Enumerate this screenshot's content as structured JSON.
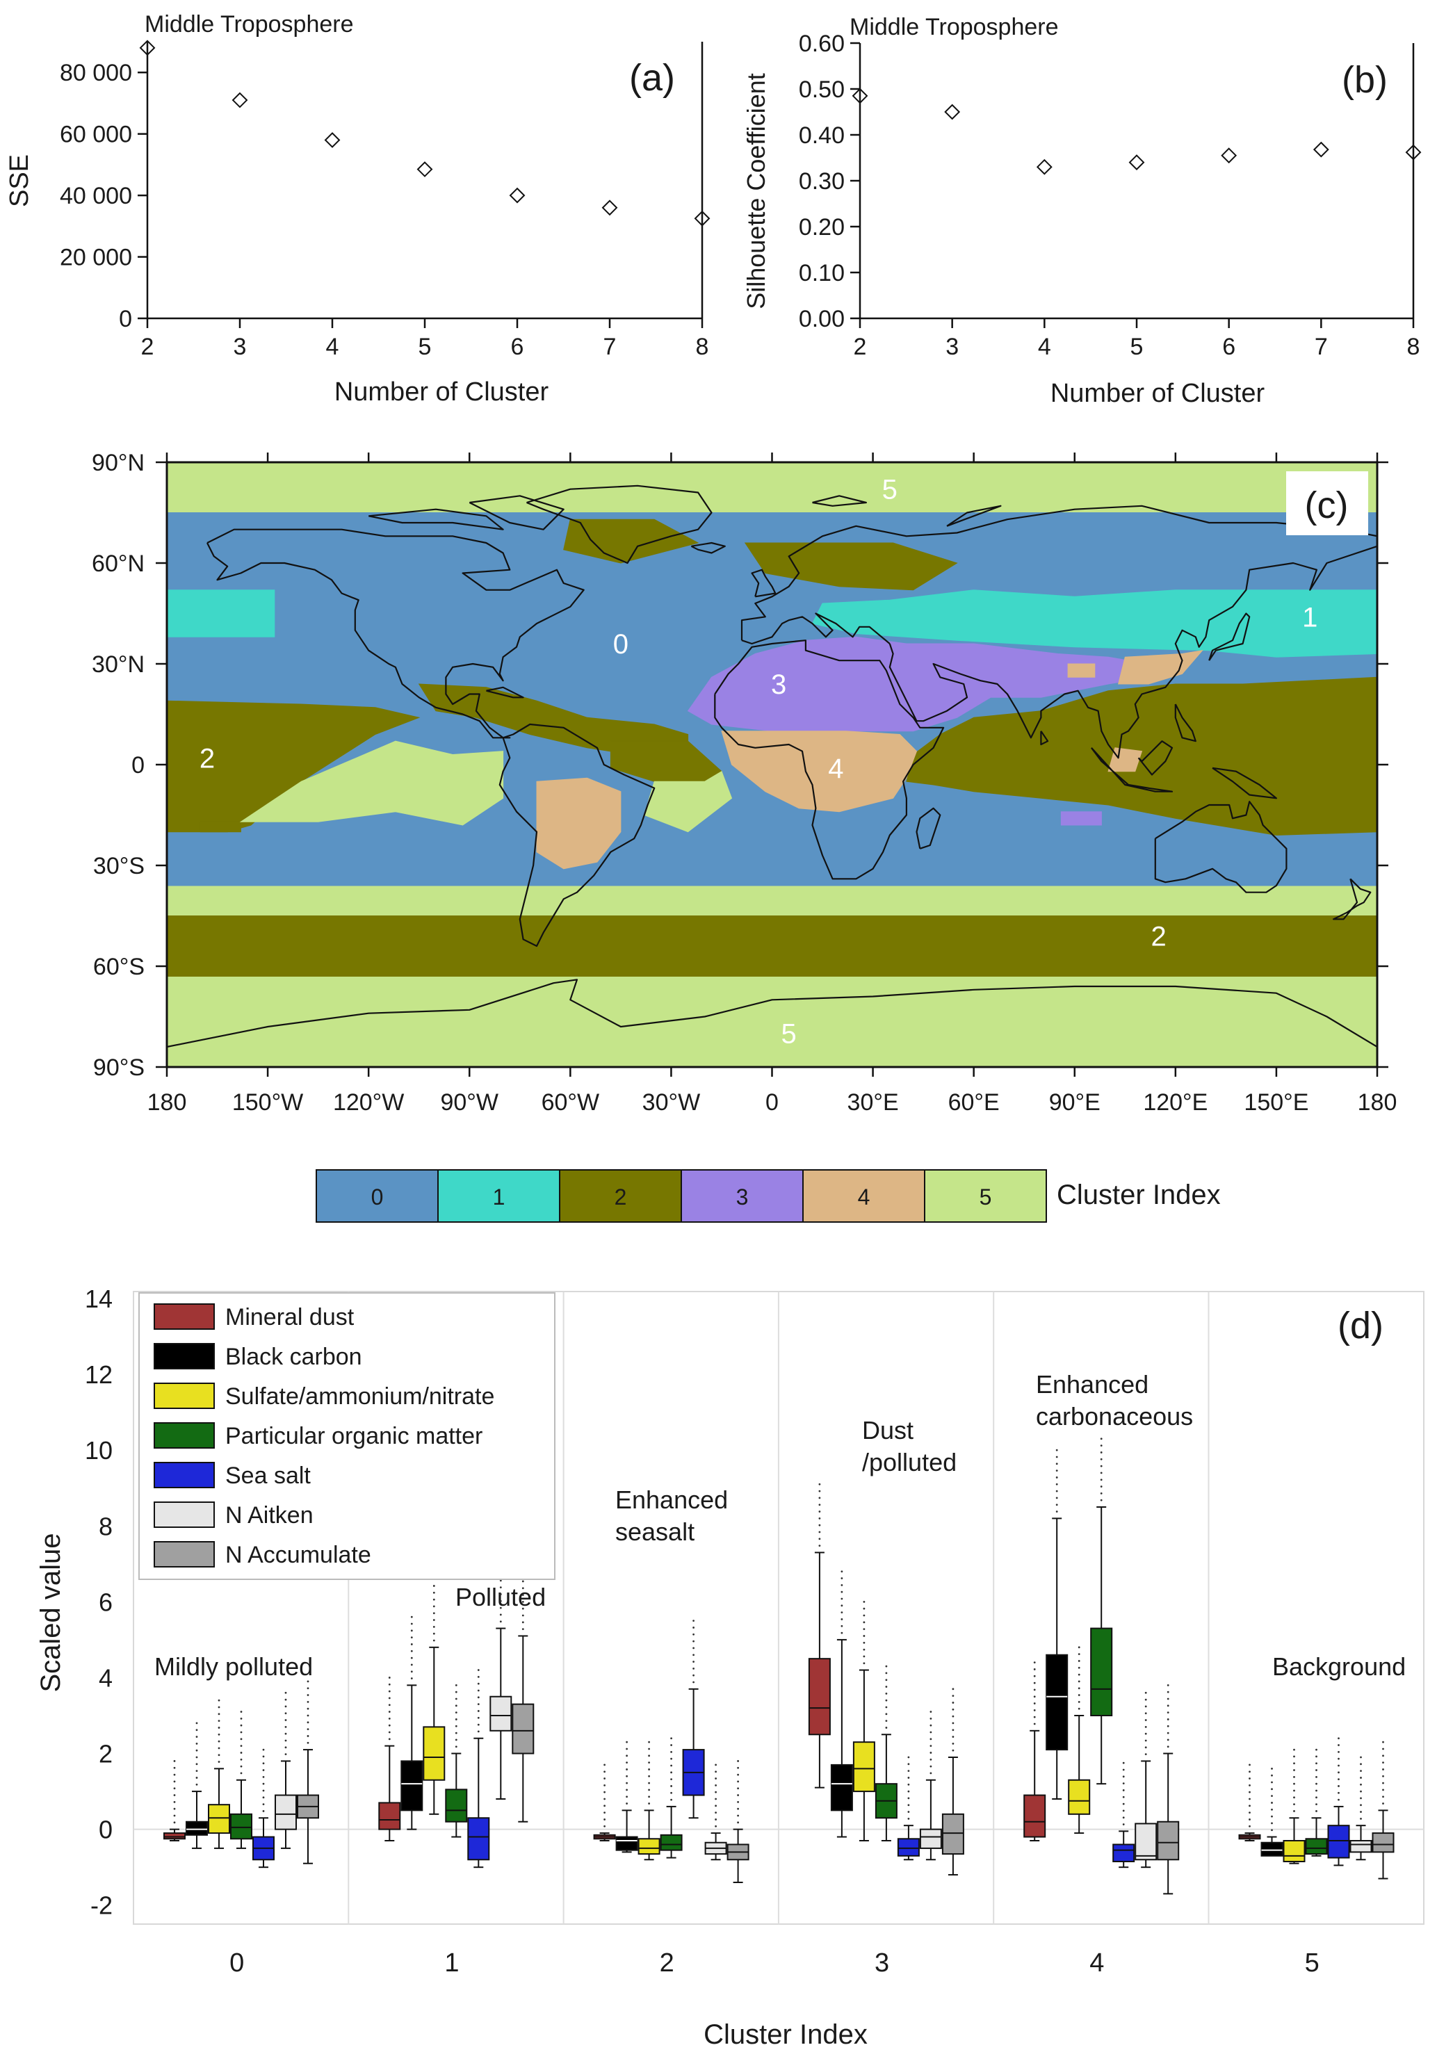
{
  "chart_data": [
    {
      "panel": "a",
      "type": "scatter",
      "title": "Middle Troposphere",
      "panel_label": "(a)",
      "xlabel": "Number of Cluster",
      "ylabel": "SSE",
      "x": [
        2,
        3,
        4,
        5,
        6,
        7,
        8
      ],
      "y": [
        88000,
        71000,
        58000,
        48500,
        40000,
        36000,
        32500
      ],
      "xlim": [
        2,
        8
      ],
      "ylim": [
        0,
        90000
      ],
      "xticks": [
        "2",
        "3",
        "4",
        "5",
        "6",
        "7",
        "8"
      ],
      "yticks": [
        {
          "v": 0,
          "label": "0"
        },
        {
          "v": 20000,
          "label": "20 000"
        },
        {
          "v": 40000,
          "label": "40 000"
        },
        {
          "v": 60000,
          "label": "60 000"
        },
        {
          "v": 80000,
          "label": "80 000"
        }
      ]
    },
    {
      "panel": "b",
      "type": "scatter",
      "title": "Middle Troposphere",
      "panel_label": "(b)",
      "xlabel": "Number of Cluster",
      "ylabel": "Silhouette Coefficient",
      "x": [
        2,
        3,
        4,
        5,
        6,
        7,
        8
      ],
      "y": [
        0.485,
        0.45,
        0.33,
        0.34,
        0.355,
        0.368,
        0.362
      ],
      "xlim": [
        2,
        8
      ],
      "ylim": [
        0,
        0.6
      ],
      "xticks": [
        "2",
        "3",
        "4",
        "5",
        "6",
        "7",
        "8"
      ],
      "yticks": [
        {
          "v": 0,
          "label": "0.00"
        },
        {
          "v": 0.1,
          "label": "0.10"
        },
        {
          "v": 0.2,
          "label": "0.20"
        },
        {
          "v": 0.3,
          "label": "0.30"
        },
        {
          "v": 0.4,
          "label": "0.40"
        },
        {
          "v": 0.5,
          "label": "0.50"
        },
        {
          "v": 0.6,
          "label": "0.60"
        }
      ]
    },
    {
      "panel": "c",
      "type": "heatmap",
      "panel_label": "(c)",
      "xlim": [
        -180,
        180
      ],
      "ylim": [
        -90,
        90
      ],
      "xticks": [
        {
          "v": -180,
          "label": "180"
        },
        {
          "v": -150,
          "label": "150°W"
        },
        {
          "v": -120,
          "label": "120°W"
        },
        {
          "v": -90,
          "label": "90°W"
        },
        {
          "v": -60,
          "label": "60°W"
        },
        {
          "v": -30,
          "label": "30°W"
        },
        {
          "v": 0,
          "label": "0"
        },
        {
          "v": 30,
          "label": "30°E"
        },
        {
          "v": 60,
          "label": "60°E"
        },
        {
          "v": 90,
          "label": "90°E"
        },
        {
          "v": 120,
          "label": "120°E"
        },
        {
          "v": 150,
          "label": "150°E"
        },
        {
          "v": 180,
          "label": "180"
        }
      ],
      "yticks": [
        {
          "v": 90,
          "label": "90°N"
        },
        {
          "v": 60,
          "label": "60°N"
        },
        {
          "v": 30,
          "label": "30°N"
        },
        {
          "v": 0,
          "label": "0"
        },
        {
          "v": -30,
          "label": "30°S"
        },
        {
          "v": -60,
          "label": "60°S"
        },
        {
          "v": -90,
          "label": "90°S"
        }
      ],
      "cluster_colors": [
        "#5b93c4",
        "#3fd8c8",
        "#777700",
        "#9a82e4",
        "#ddb685",
        "#c5e58a"
      ],
      "colorbar_labels": [
        "0",
        "1",
        "2",
        "3",
        "4",
        "5"
      ],
      "colorbar_title": "Cluster Index",
      "regions": [
        {
          "label": "0",
          "lon": -45,
          "lat": 36
        },
        {
          "label": "1",
          "lon": 160,
          "lat": 44
        },
        {
          "label": "2",
          "lon": -168,
          "lat": 2
        },
        {
          "label": "2",
          "lon": 115,
          "lat": -51
        },
        {
          "label": "3",
          "lon": 2,
          "lat": 24
        },
        {
          "label": "4",
          "lon": 19,
          "lat": -1
        },
        {
          "label": "5",
          "lon": 35,
          "lat": 82
        },
        {
          "label": "5",
          "lon": 5,
          "lat": -80
        }
      ]
    },
    {
      "panel": "d",
      "type": "box",
      "panel_label": "(d)",
      "xlabel": "Cluster Index",
      "ylabel": "Scaled value",
      "ylim": [
        -2.5,
        14
      ],
      "yticks": [
        {
          "v": -2,
          "label": "-2"
        },
        {
          "v": 0,
          "label": "0"
        },
        {
          "v": 2,
          "label": "2"
        },
        {
          "v": 4,
          "label": "4"
        },
        {
          "v": 6,
          "label": "6"
        },
        {
          "v": 8,
          "label": "8"
        },
        {
          "v": 10,
          "label": "10"
        },
        {
          "v": 12,
          "label": "12"
        },
        {
          "v": 14,
          "label": "14"
        }
      ],
      "categories": [
        "0",
        "1",
        "2",
        "3",
        "4",
        "5"
      ],
      "group_labels": [
        [
          "Mildly polluted"
        ],
        [
          "Polluted"
        ],
        [
          "Enhanced",
          "seasalt"
        ],
        [
          "Dust",
          "/polluted"
        ],
        [
          "Enhanced",
          "carbonaceous"
        ],
        [
          "Background"
        ]
      ],
      "series": [
        {
          "name": "Mineral dust",
          "color": "#a03535",
          "stats": [
            [
              -0.3,
              -0.25,
              -0.2,
              -0.1,
              0.0
            ],
            [
              -0.3,
              0.0,
              0.25,
              0.7,
              2.2
            ],
            [
              -0.3,
              -0.25,
              -0.2,
              -0.15,
              -0.1
            ],
            [
              1.1,
              2.5,
              3.2,
              4.5,
              7.3
            ],
            [
              -0.3,
              -0.2,
              0.2,
              0.9,
              2.6
            ],
            [
              -0.3,
              -0.25,
              -0.2,
              -0.15,
              -0.1
            ]
          ]
        },
        {
          "name": "Black carbon",
          "color": "#000000",
          "stats": [
            [
              -0.5,
              -0.15,
              0.0,
              0.2,
              1.0
            ],
            [
              0.0,
              0.5,
              1.2,
              1.8,
              3.8
            ],
            [
              -0.6,
              -0.55,
              -0.3,
              -0.2,
              0.5
            ],
            [
              -0.2,
              0.5,
              1.2,
              1.7,
              5.0
            ],
            [
              0.8,
              2.1,
              3.5,
              4.6,
              8.2
            ],
            [
              -0.6,
              -0.7,
              -0.55,
              -0.35,
              -0.2
            ]
          ]
        },
        {
          "name": "Sulfate/ammonium/nitrate",
          "color": "#e8e020",
          "stats": [
            [
              -0.5,
              -0.1,
              0.3,
              0.65,
              1.6
            ],
            [
              0.4,
              1.3,
              1.9,
              2.7,
              4.8
            ],
            [
              -0.8,
              -0.65,
              -0.5,
              -0.25,
              0.5
            ],
            [
              -0.3,
              1.0,
              1.6,
              2.3,
              4.2
            ],
            [
              -0.1,
              0.4,
              0.75,
              1.3,
              3.0
            ],
            [
              -0.9,
              -0.85,
              -0.7,
              -0.3,
              0.3
            ]
          ]
        },
        {
          "name": "Particular organic matter",
          "color": "#136b13",
          "stats": [
            [
              -0.5,
              -0.25,
              0.05,
              0.4,
              1.3
            ],
            [
              -0.2,
              0.2,
              0.5,
              1.05,
              2.0
            ],
            [
              -0.75,
              -0.55,
              -0.4,
              -0.15,
              0.6
            ],
            [
              -0.3,
              0.3,
              0.75,
              1.2,
              2.5
            ],
            [
              1.2,
              3.0,
              3.7,
              5.3,
              8.5
            ],
            [
              -0.7,
              -0.65,
              -0.5,
              -0.25,
              0.3
            ]
          ]
        },
        {
          "name": "Sea salt",
          "color": "#1e28d8",
          "stats": [
            [
              -1.0,
              -0.8,
              -0.5,
              -0.2,
              0.3
            ],
            [
              -1.0,
              -0.8,
              -0.2,
              0.3,
              2.4
            ],
            [
              0.3,
              0.9,
              1.5,
              2.1,
              3.7
            ],
            [
              -0.8,
              -0.7,
              -0.5,
              -0.25,
              0.1
            ],
            [
              -1.0,
              -0.85,
              -0.55,
              -0.4,
              -0.05
            ],
            [
              -0.95,
              -0.75,
              -0.3,
              0.1,
              0.6
            ]
          ]
        },
        {
          "name": "N Aitken",
          "color": "#e6e6e6",
          "stats": [
            [
              -0.5,
              0.0,
              0.4,
              0.9,
              1.8
            ],
            [
              0.8,
              2.6,
              3.0,
              3.5,
              5.3
            ],
            [
              -0.8,
              -0.65,
              -0.5,
              -0.35,
              -0.1
            ],
            [
              -0.8,
              -0.5,
              -0.2,
              0.0,
              1.3
            ],
            [
              -1.0,
              -0.8,
              -0.7,
              0.15,
              1.8
            ],
            [
              -0.8,
              -0.6,
              -0.4,
              -0.3,
              0.1
            ]
          ]
        },
        {
          "name": "N Accumulate",
          "color": "#a0a0a0",
          "stats": [
            [
              -0.9,
              0.3,
              0.6,
              0.9,
              2.1
            ],
            [
              0.2,
              2.0,
              2.6,
              3.3,
              5.1
            ],
            [
              -1.4,
              -0.8,
              -0.6,
              -0.4,
              0.0
            ],
            [
              -1.2,
              -0.65,
              -0.1,
              0.4,
              1.9
            ],
            [
              -1.7,
              -0.8,
              -0.35,
              0.2,
              2.0
            ],
            [
              -1.3,
              -0.6,
              -0.4,
              -0.1,
              0.5
            ]
          ]
        }
      ]
    }
  ]
}
